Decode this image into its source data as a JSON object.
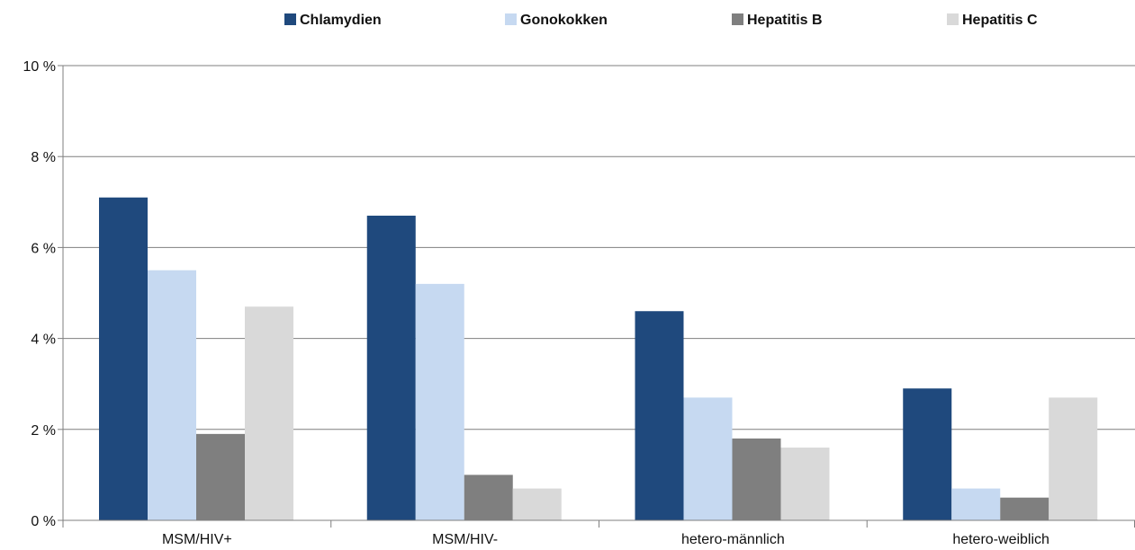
{
  "chart_data": {
    "type": "bar",
    "categories": [
      "MSM/HIV+",
      "MSM/HIV-",
      "hetero-männlich",
      "hetero-weiblich"
    ],
    "series": [
      {
        "name": "Chlamydien",
        "color": "#1f497d",
        "values": [
          7.1,
          6.7,
          4.6,
          2.9
        ]
      },
      {
        "name": "Gonokokken",
        "color": "#c6d9f1",
        "values": [
          5.5,
          5.2,
          2.7,
          0.7
        ]
      },
      {
        "name": "Hepatitis B",
        "color": "#7f7f7f",
        "values": [
          1.9,
          1.0,
          1.8,
          0.5
        ]
      },
      {
        "name": "Hepatitis C",
        "color": "#d9d9d9",
        "values": [
          4.7,
          0.7,
          1.6,
          2.7
        ]
      }
    ],
    "ylim": [
      0,
      10
    ],
    "yticks": [
      0,
      2,
      4,
      6,
      8,
      10
    ],
    "ytick_labels": [
      "0 %",
      "2 %",
      "4 %",
      "6 %",
      "8 %",
      "10 %"
    ],
    "grid": true,
    "legend_position": "top",
    "xlabel": "",
    "ylabel": ""
  }
}
